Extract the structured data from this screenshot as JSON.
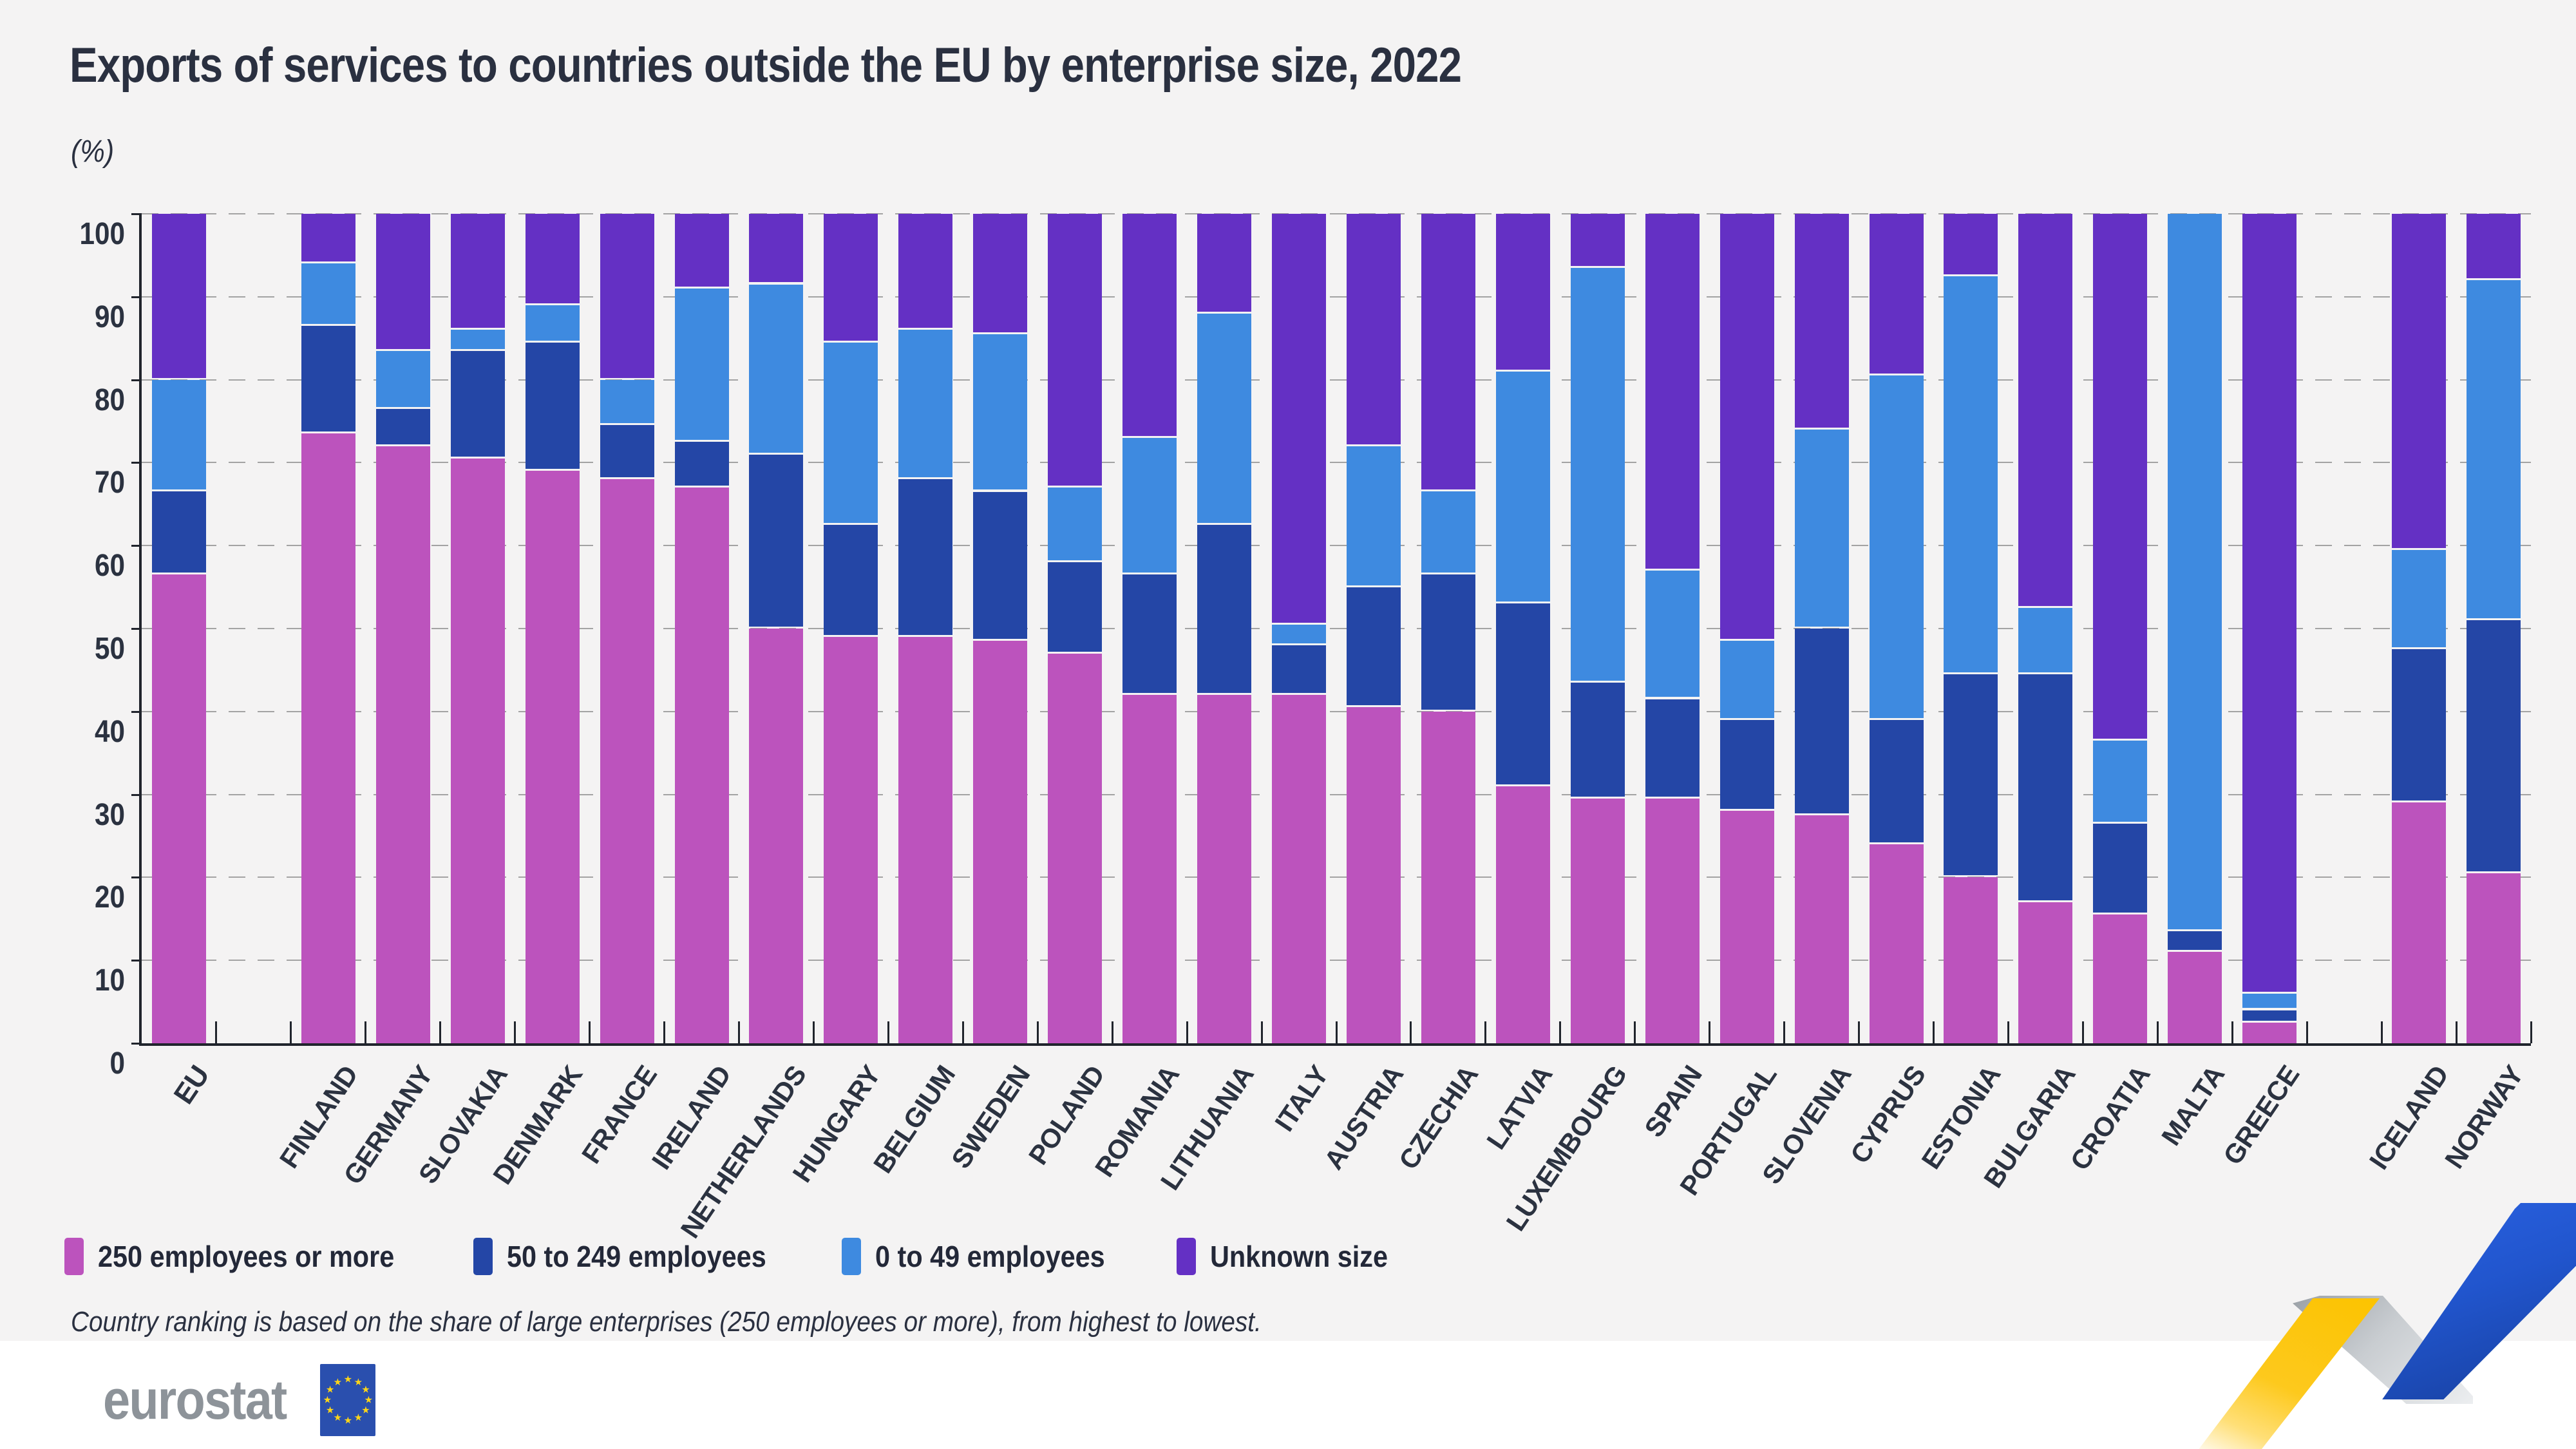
{
  "header": {
    "title": "Exports of services to countries outside the EU by enterprise size, 2022",
    "subtitle": "(%)"
  },
  "footnote": "Country ranking is based on the share of large enterprises (250 employees or more), from highest to lowest.",
  "logo": {
    "text": "eurostat"
  },
  "colors": {
    "background": "#f4f3f3",
    "axis": "#20242c",
    "grid": "#a3a3a3",
    "text": "#2b3240",
    "large": "#bc53bd",
    "medium": "#2446a6",
    "small": "#3e8ae0",
    "unknown": "#6430c4",
    "logo_gray": "#8d9399",
    "flag_blue": "#2a4fae",
    "ribbon_yellow": "#fdc91d",
    "ribbon_blue": "#2155cd"
  },
  "chart_data": {
    "type": "bar",
    "variant": "stacked-100",
    "title": "Exports of services to countries outside the EU by enterprise size, 2022",
    "ylabel": "(%)",
    "ylim": [
      0,
      100
    ],
    "ytick_step": 10,
    "ytick_labels": [
      "0",
      "10",
      "20",
      "30",
      "40",
      "50",
      "60",
      "70",
      "80",
      "90",
      "100"
    ],
    "grid": "dashed-horizontal",
    "legend_position": "bottom",
    "categories": [
      "EU",
      "FINLAND",
      "GERMANY",
      "SLOVAKIA",
      "DENMARK",
      "FRANCE",
      "IRELAND",
      "NETHERLANDS",
      "HUNGARY",
      "BELGIUM",
      "SWEDEN",
      "POLAND",
      "ROMANIA",
      "LITHUANIA",
      "ITALY",
      "AUSTRIA",
      "CZECHIA",
      "LATVIA",
      "LUXEMBOURG",
      "SPAIN",
      "PORTUGAL",
      "SLOVENIA",
      "CYPRUS",
      "ESTONIA",
      "BULGARIA",
      "CROATIA",
      "MALTA",
      "GREECE",
      "ICELAND",
      "NORWAY"
    ],
    "gaps_after": [
      "EU",
      "GREECE"
    ],
    "series": [
      {
        "name": "250 employees or more",
        "color": "#bc53bd",
        "values": [
          56.5,
          73.5,
          72,
          70.5,
          69,
          68,
          67,
          50,
          49,
          49,
          48.5,
          47,
          42,
          42,
          42,
          40.5,
          40,
          31,
          29.5,
          29.5,
          28,
          27.5,
          24,
          20,
          17,
          15.5,
          11,
          2.5,
          29,
          20.5
        ]
      },
      {
        "name": "50 to 249 employees",
        "color": "#2446a6",
        "values": [
          10,
          13,
          4.5,
          13,
          15.5,
          6.5,
          5.5,
          21,
          13.5,
          19,
          18,
          11,
          14.5,
          20.5,
          6,
          14.5,
          16.5,
          22,
          14,
          12,
          11,
          22.5,
          15,
          24.5,
          27.5,
          11,
          2.5,
          1.5,
          18.5,
          30.5
        ]
      },
      {
        "name": "0 to 49 employees",
        "color": "#3e8ae0",
        "values": [
          13.5,
          7.5,
          7,
          2.5,
          4.5,
          5.5,
          18.5,
          20.5,
          22,
          18,
          19,
          9,
          16.5,
          25.5,
          2.5,
          17,
          10,
          28,
          50,
          15.5,
          9.5,
          24,
          41.5,
          48,
          8,
          10,
          86.5,
          2,
          12,
          41
        ]
      },
      {
        "name": "Unknown size",
        "color": "#6430c4",
        "values": [
          20,
          6,
          16.5,
          14,
          11,
          20,
          9,
          8.5,
          15.5,
          14,
          14.5,
          33,
          27,
          12,
          49.5,
          28,
          33.5,
          19,
          6.5,
          43,
          51.5,
          26,
          19.5,
          7.5,
          47.5,
          63.5,
          0,
          94,
          40.5,
          8
        ]
      }
    ]
  }
}
